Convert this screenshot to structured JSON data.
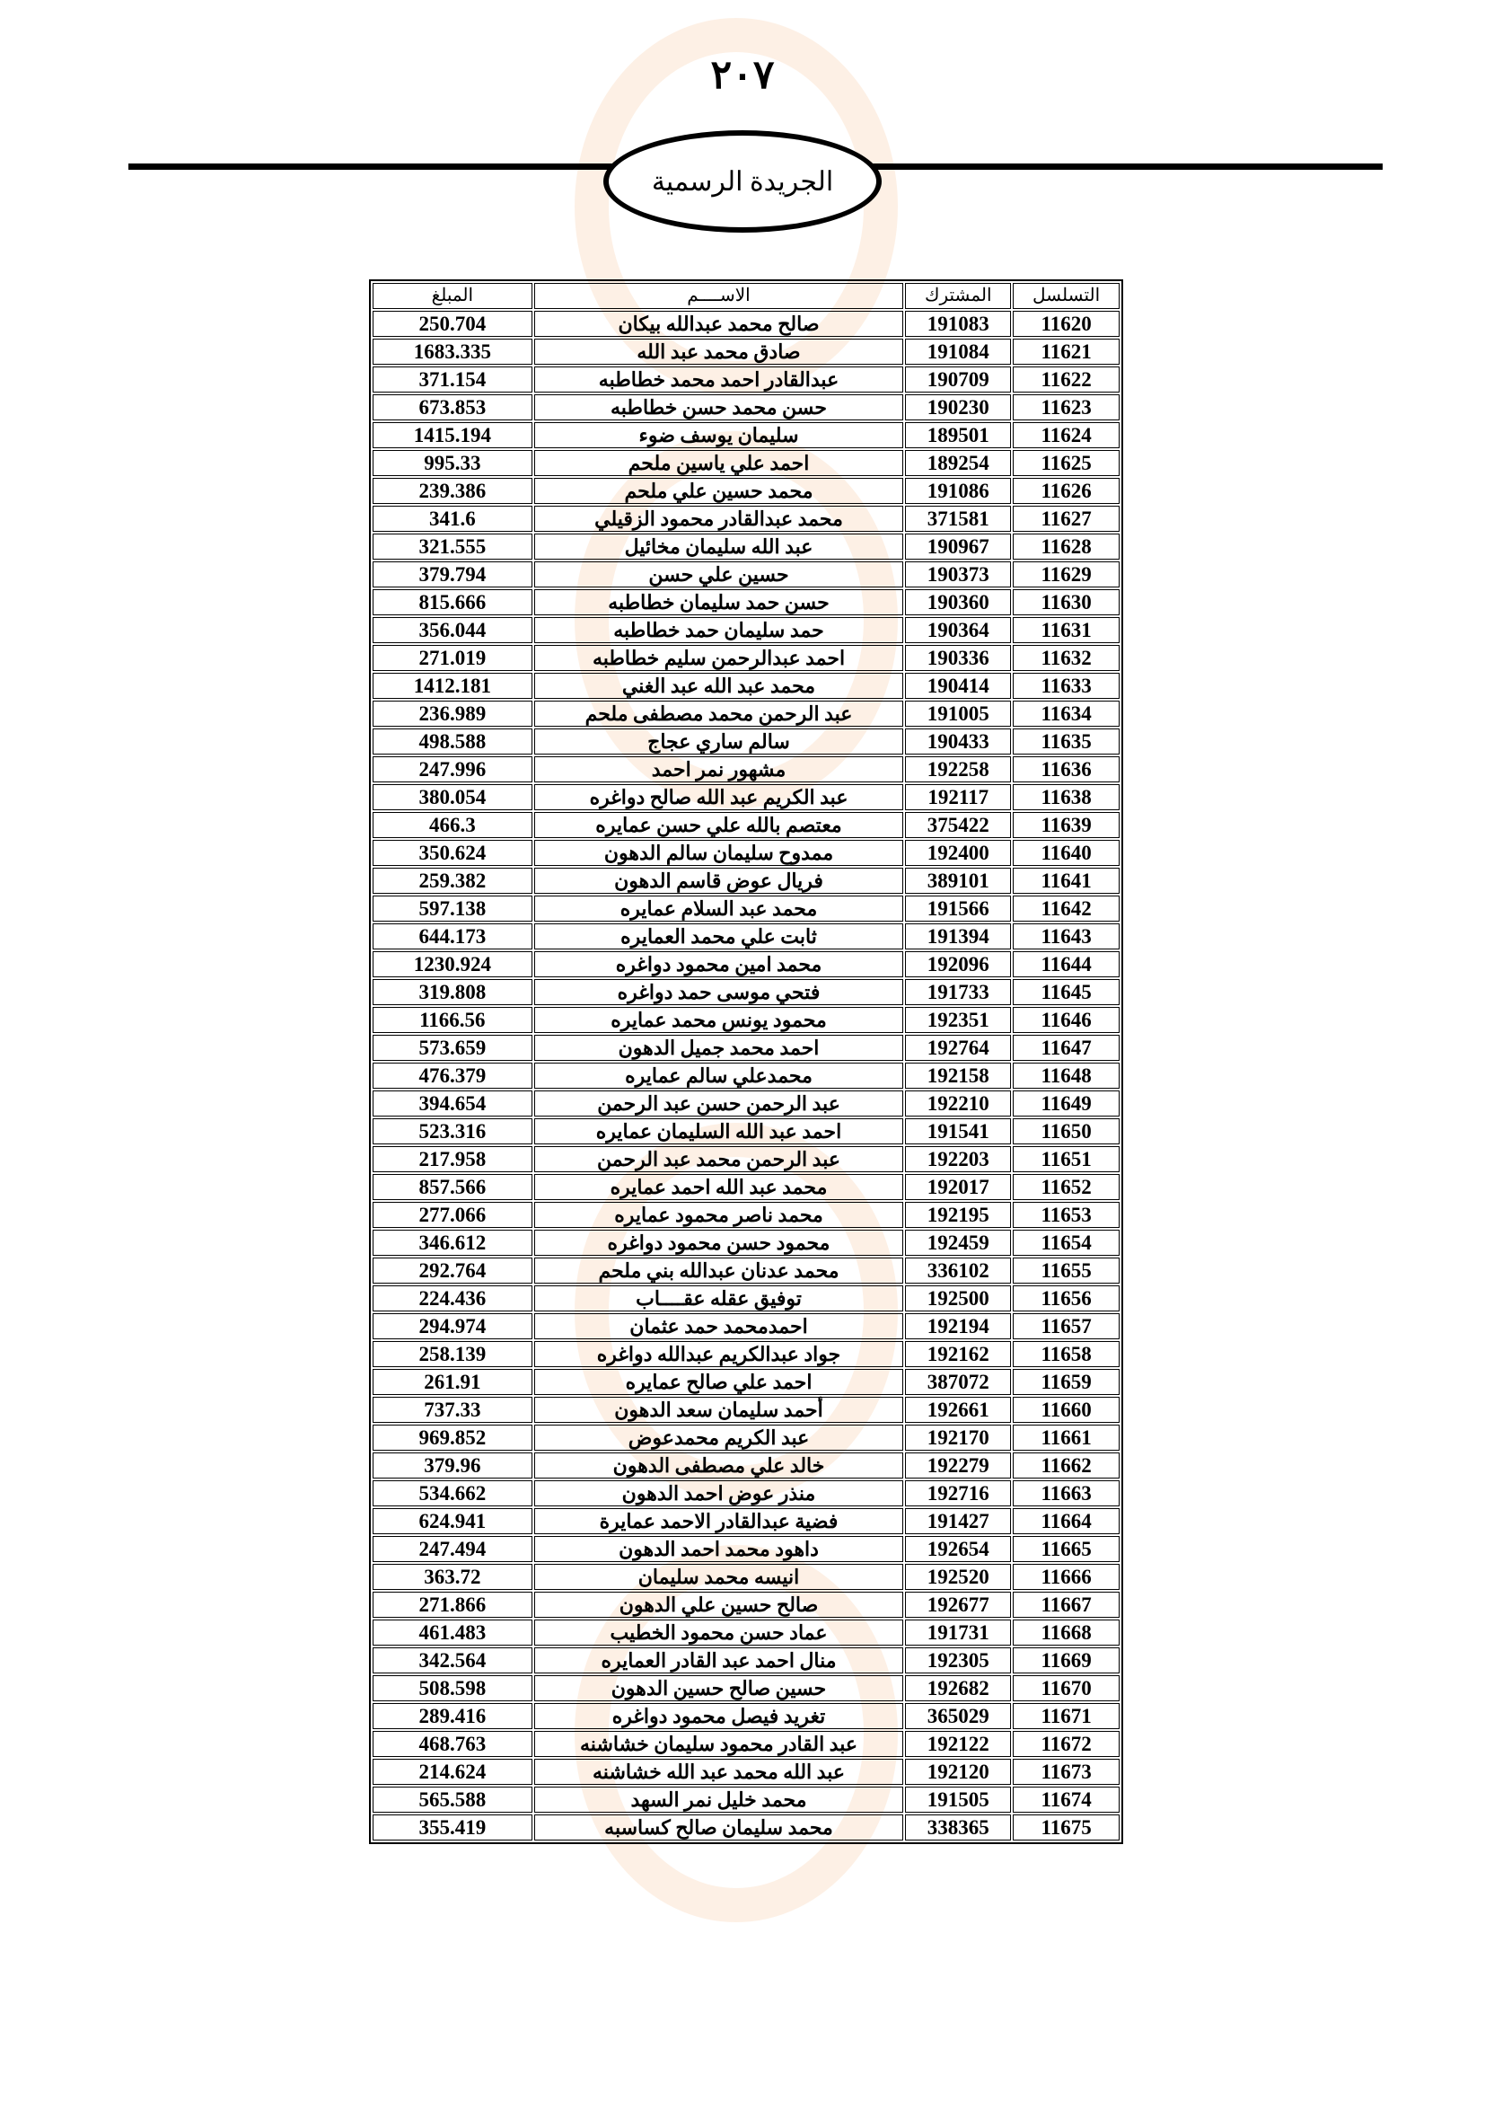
{
  "header": {
    "page_number": "٢٠٧",
    "gazette_title": "الجريدة الرسمية"
  },
  "table": {
    "columns": [
      "التسلسل",
      "المشترك",
      "الاســــم",
      "المبلغ"
    ],
    "rows": [
      [
        "11620",
        "191083",
        "صالح محمد عبدالله بيكان",
        "250.704"
      ],
      [
        "11621",
        "191084",
        "صادق محمد عبد الله",
        "1683.335"
      ],
      [
        "11622",
        "190709",
        "عبدالقادر احمد محمد خطاطبه",
        "371.154"
      ],
      [
        "11623",
        "190230",
        "حسن محمد حسن خطاطبه",
        "673.853"
      ],
      [
        "11624",
        "189501",
        "سليمان يوسف ضوء",
        "1415.194"
      ],
      [
        "11625",
        "189254",
        "احمد علي ياسين ملحم",
        "995.33"
      ],
      [
        "11626",
        "191086",
        "محمد حسين علي ملحم",
        "239.386"
      ],
      [
        "11627",
        "371581",
        "محمد عبدالقادر محمود الزقيلي",
        "341.6"
      ],
      [
        "11628",
        "190967",
        "عبد الله سليمان مخائيل",
        "321.555"
      ],
      [
        "11629",
        "190373",
        "حسين علي حسن",
        "379.794"
      ],
      [
        "11630",
        "190360",
        "حسن حمد سليمان خطاطبه",
        "815.666"
      ],
      [
        "11631",
        "190364",
        "حمد سليمان حمد خطاطبه",
        "356.044"
      ],
      [
        "11632",
        "190336",
        "احمد عبدالرحمن سليم خطاطبه",
        "271.019"
      ],
      [
        "11633",
        "190414",
        "محمد عبد الله عبد الغني",
        "1412.181"
      ],
      [
        "11634",
        "191005",
        "عبد الرحمن محمد مصطفى ملحم",
        "236.989"
      ],
      [
        "11635",
        "190433",
        "سالم ساري عجاج",
        "498.588"
      ],
      [
        "11636",
        "192258",
        "مشهور نمر احمد",
        "247.996"
      ],
      [
        "11638",
        "192117",
        "عبد الكريم عبد الله صالح دواغره",
        "380.054"
      ],
      [
        "11639",
        "375422",
        "معتصم بالله علي حسن عمايره",
        "466.3"
      ],
      [
        "11640",
        "192400",
        "ممدوح سليمان سالم الدهون",
        "350.624"
      ],
      [
        "11641",
        "389101",
        "فريال عوض قاسم الدهون",
        "259.382"
      ],
      [
        "11642",
        "191566",
        "محمد عبد السلام عمايره",
        "597.138"
      ],
      [
        "11643",
        "191394",
        "ثابت علي محمد العمايره",
        "644.173"
      ],
      [
        "11644",
        "192096",
        "محمد امين محمود دواغره",
        "1230.924"
      ],
      [
        "11645",
        "191733",
        "فتحي موسى حمد دواغره",
        "319.808"
      ],
      [
        "11646",
        "192351",
        "محمود يونس محمد عمايره",
        "1166.56"
      ],
      [
        "11647",
        "192764",
        "احمد محمد جميل الدهون",
        "573.659"
      ],
      [
        "11648",
        "192158",
        "محمدعلي سالم عمايره",
        "476.379"
      ],
      [
        "11649",
        "192210",
        "عبد الرحمن حسن عبد الرحمن",
        "394.654"
      ],
      [
        "11650",
        "191541",
        "احمد عبد الله  السليمان  عمايره",
        "523.316"
      ],
      [
        "11651",
        "192203",
        "عبد الرحمن محمد عبد الرحمن",
        "217.958"
      ],
      [
        "11652",
        "192017",
        "محمد عبد الله احمد عمايره",
        "857.566"
      ],
      [
        "11653",
        "192195",
        "محمد ناصر محمود عمايره",
        "277.066"
      ],
      [
        "11654",
        "192459",
        "محمود حسن محمود دواغره",
        "346.612"
      ],
      [
        "11655",
        "336102",
        "محمد عدنان عبدالله بني ملحم",
        "292.764"
      ],
      [
        "11656",
        "192500",
        "توفيق عقله عقــــاب",
        "224.436"
      ],
      [
        "11657",
        "192194",
        "احمدمحمد حمد عثمان",
        "294.974"
      ],
      [
        "11658",
        "192162",
        "جواد عبدالكريم عبدالله دواغره",
        "258.139"
      ],
      [
        "11659",
        "387072",
        "احمد علي صالح عمايره",
        "261.91"
      ],
      [
        "11660",
        "192661",
        "أحمد سليمان سعد الدهون",
        "737.33"
      ],
      [
        "11661",
        "192170",
        "عبد الكريم محمدعوض",
        "969.852"
      ],
      [
        "11662",
        "192279",
        "خالد علي مصطفى الدهون",
        "379.96"
      ],
      [
        "11663",
        "192716",
        "منذر عوض احمد الدهون",
        "534.662"
      ],
      [
        "11664",
        "191427",
        "فضية عبدالقادر الاحمد عمايرة",
        "624.941"
      ],
      [
        "11665",
        "192654",
        "داهود محمد احمد الدهون",
        "247.494"
      ],
      [
        "11666",
        "192520",
        "انيسه محمد سليمان",
        "363.72"
      ],
      [
        "11667",
        "192677",
        "صالح حسين علي الدهون",
        "271.866"
      ],
      [
        "11668",
        "191731",
        "عماد حسن محمود الخطيب",
        "461.483"
      ],
      [
        "11669",
        "192305",
        "منال احمد عبد القادر العمايره",
        "342.564"
      ],
      [
        "11670",
        "192682",
        "حسين صالح حسين الدهون",
        "508.598"
      ],
      [
        "11671",
        "365029",
        "تغريد فيصل محمود دواغره",
        "289.416"
      ],
      [
        "11672",
        "192122",
        "عبد القادر محمود سليمان خشاشنه",
        "468.763"
      ],
      [
        "11673",
        "192120",
        "عبد الله محمد عبد الله خشاشنه",
        "214.624"
      ],
      [
        "11674",
        "191505",
        "محمد خليل نمر السهد",
        "565.588"
      ],
      [
        "11675",
        "338365",
        "محمد سليمان صالح كساسبه",
        "355.419"
      ]
    ]
  }
}
